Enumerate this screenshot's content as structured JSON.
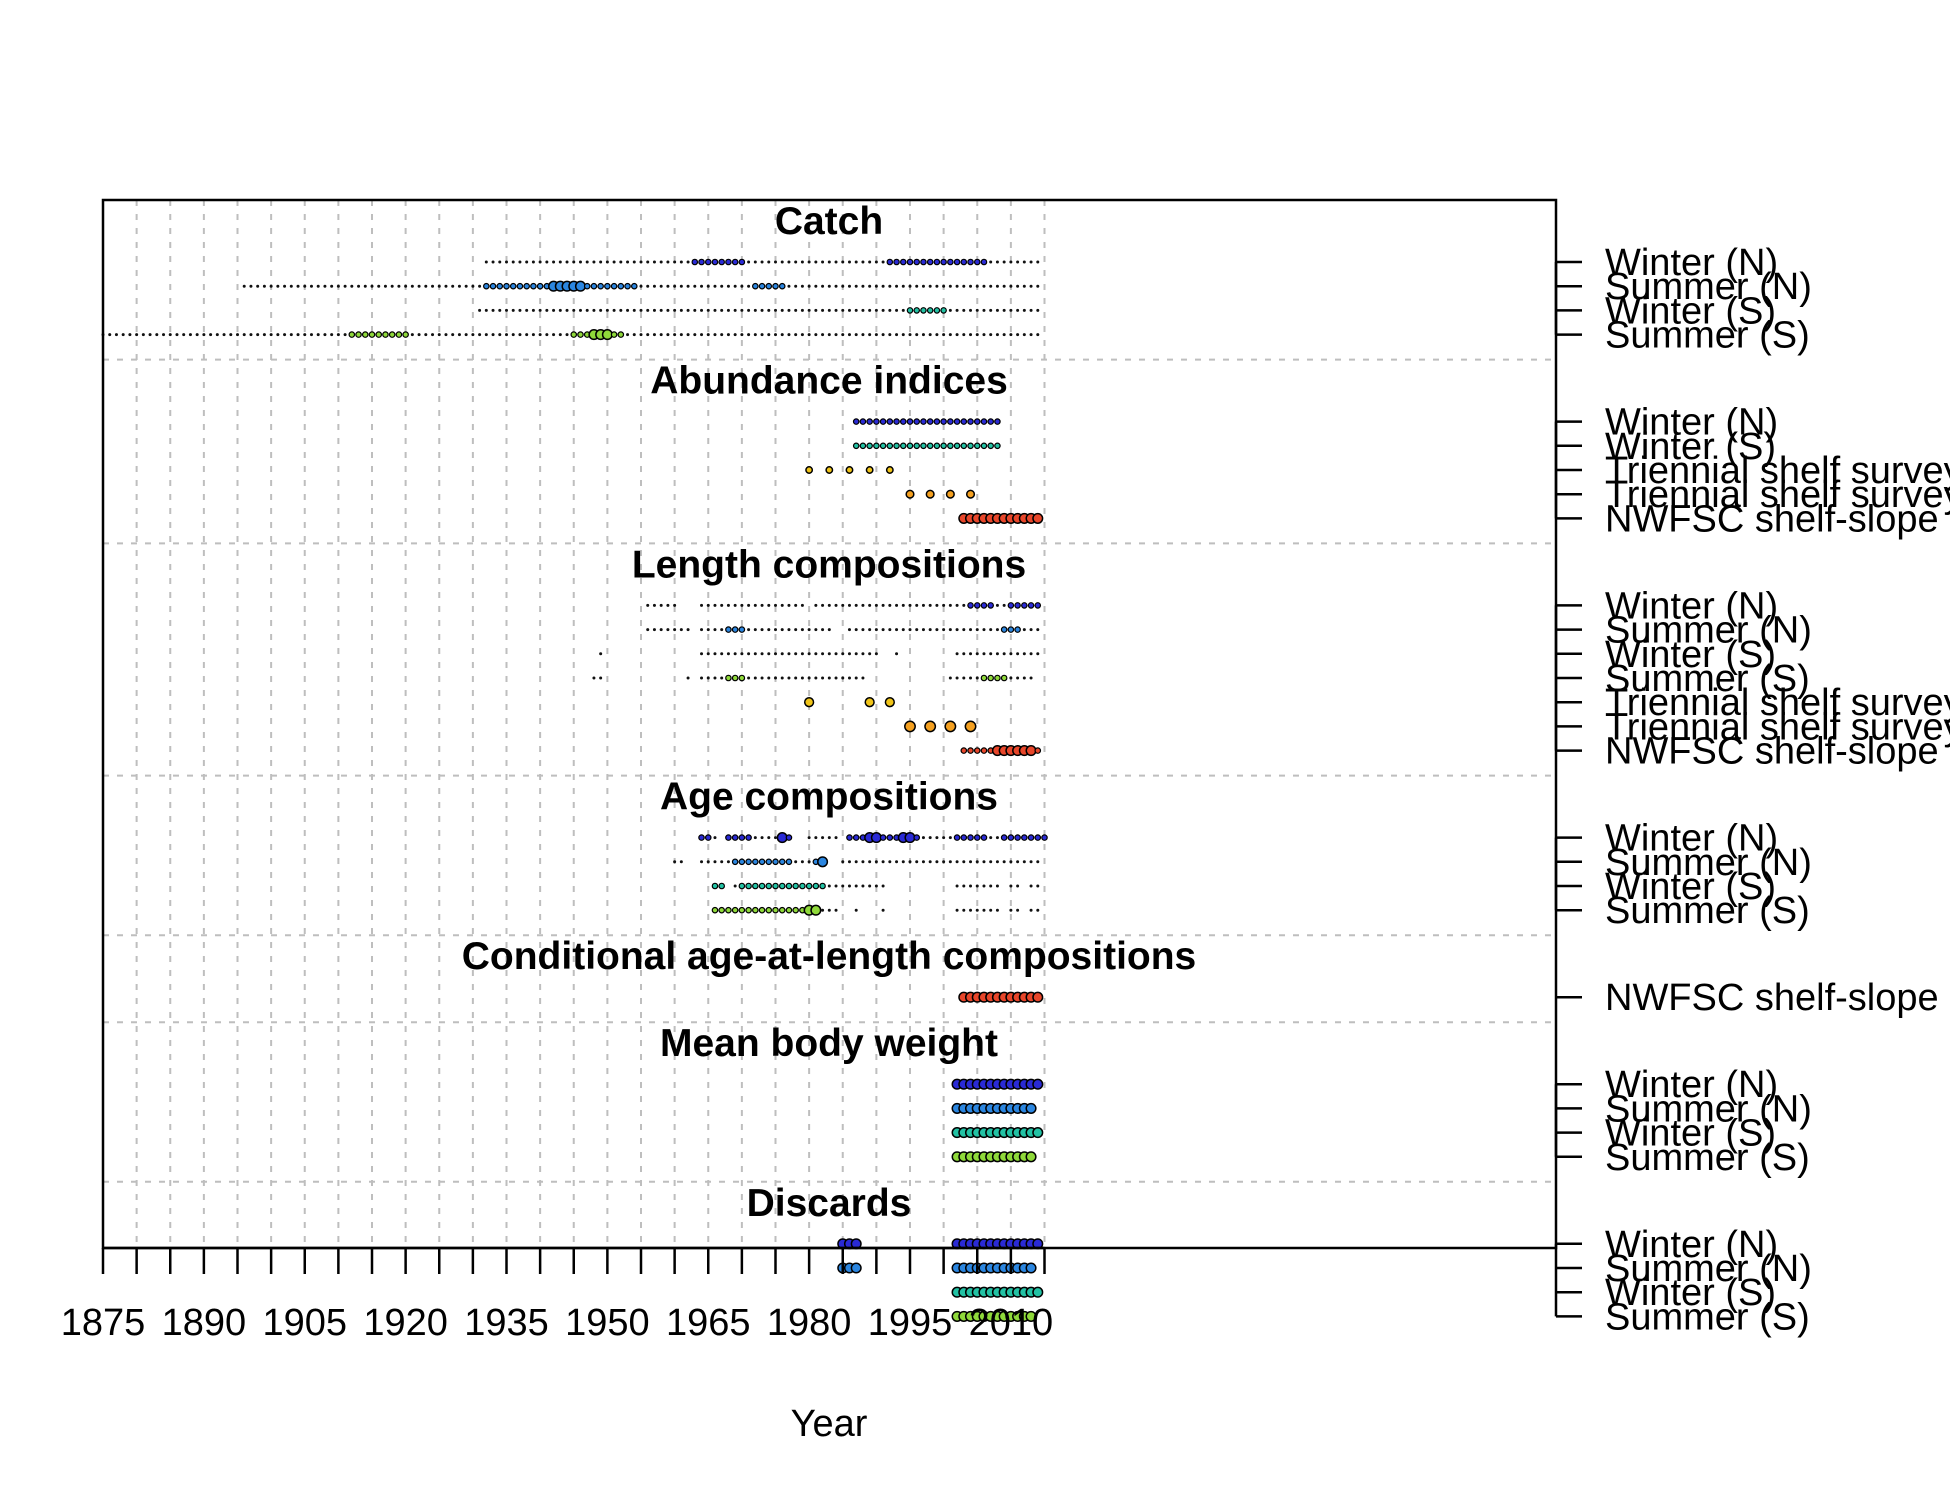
{
  "chart_data": {
    "type": "scatter",
    "title": "",
    "xlabel": "Year",
    "ylabel": "",
    "xlim": [
      1875,
      2017
    ],
    "x_ticks": [
      1875,
      1890,
      1905,
      1920,
      1935,
      1950,
      1965,
      1980,
      1995,
      2010
    ],
    "grid": true,
    "legend": "none",
    "point_colors": {
      "Winter (N)": "#2a2ad6",
      "Summer (N)": "#2b86e0",
      "Winter (S)": "#22c2a4",
      "Summer (S)": "#8fd93a",
      "Triennial shelf survey (early)": "#f0c419",
      "Triennial shelf survey (late)": "#f4a020",
      "NWFSC shelf-slope": "#e8462a"
    },
    "sections": [
      {
        "title": "Catch",
        "rows": [
          {
            "label": "Winter (N)",
            "segments": [
              [
                1932,
                2014
              ]
            ],
            "big": [
              [
                1963,
                1970
              ],
              [
                1992,
                2006
              ]
            ],
            "huge": []
          },
          {
            "label": "Summer (N)",
            "segments": [
              [
                1896,
                2014
              ]
            ],
            "big": [
              [
                1932,
                1954
              ],
              [
                1972,
                1976
              ]
            ],
            "huge": [
              [
                1942,
                1946
              ]
            ]
          },
          {
            "label": "Winter (S)",
            "segments": [
              [
                1931,
                2014
              ]
            ],
            "big": [
              [
                1995,
                2000
              ]
            ],
            "huge": []
          },
          {
            "label": "Summer (S)",
            "segments": [
              [
                1875,
                2014
              ]
            ],
            "big": [
              [
                1912,
                1920
              ],
              [
                1945,
                1952
              ]
            ],
            "huge": [
              [
                1948,
                1950
              ]
            ]
          }
        ]
      },
      {
        "title": "Abundance indices",
        "rows": [
          {
            "label": "Winter (N)",
            "segments": [
              [
                1987,
                2008
              ]
            ],
            "big": [
              [
                1987,
                2008
              ]
            ],
            "huge": []
          },
          {
            "label": "Winter (S)",
            "segments": [
              [
                1987,
                2008
              ]
            ],
            "big": [
              [
                1987,
                2008
              ]
            ],
            "huge": []
          },
          {
            "label": "Triennial shelf survey (early)",
            "points": [
              1980,
              1983,
              1986,
              1989,
              1992
            ],
            "size": 3.2
          },
          {
            "label": "Triennial shelf survey (late)",
            "points": [
              1995,
              1998,
              2001,
              2004
            ],
            "size": 3.8
          },
          {
            "label": "NWFSC shelf-slope",
            "segments": [
              [
                2003,
                2014
              ]
            ],
            "big": [
              [
                2003,
                2014
              ]
            ],
            "huge": [
              [
                2003,
                2014
              ]
            ]
          }
        ]
      },
      {
        "title": "Length compositions",
        "rows": [
          {
            "label": "Winter (N)",
            "segments": [
              [
                1956,
                1960
              ],
              [
                1964,
                1979
              ],
              [
                1981,
                2014
              ]
            ],
            "big": [
              [
                2004,
                2007
              ],
              [
                2010,
                2014
              ]
            ],
            "huge": []
          },
          {
            "label": "Summer (N)",
            "segments": [
              [
                1956,
                1959
              ],
              [
                1960,
                1962
              ],
              [
                1964,
                1983
              ],
              [
                1986,
                2014
              ]
            ],
            "big": [
              [
                1968,
                1970
              ],
              [
                2009,
                2011
              ]
            ],
            "huge": []
          },
          {
            "label": "Winter (S)",
            "segments": [
              [
                1949,
                1949
              ],
              [
                1964,
                1990
              ],
              [
                1993,
                1993
              ],
              [
                2002,
                2014
              ]
            ],
            "big": [],
            "huge": []
          },
          {
            "label": "Summer (S)",
            "segments": [
              [
                1948,
                1949
              ],
              [
                1962,
                1962
              ],
              [
                1964,
                1988
              ],
              [
                2001,
                2013
              ]
            ],
            "big": [
              [
                1968,
                1970
              ],
              [
                2006,
                2009
              ]
            ],
            "huge": []
          },
          {
            "label": "Triennial shelf survey (early)",
            "points": [
              1980,
              1989,
              1992
            ],
            "size": 4.4
          },
          {
            "label": "Triennial shelf survey (late)",
            "points": [
              1995,
              1998,
              2001,
              2004
            ],
            "size": 5.2
          },
          {
            "label": "NWFSC shelf-slope",
            "segments": [
              [
                2003,
                2014
              ]
            ],
            "big": [
              [
                2003,
                2014
              ]
            ],
            "huge": [
              [
                2008,
                2013
              ]
            ]
          }
        ]
      },
      {
        "title": "Age compositions",
        "rows": [
          {
            "label": "Winter (N)",
            "segments": [
              [
                1964,
                1966
              ],
              [
                1968,
                1977
              ],
              [
                1980,
                1984
              ],
              [
                1986,
                2015
              ]
            ],
            "big": [
              [
                1964,
                1965
              ],
              [
                1968,
                1971
              ],
              [
                1976,
                1977
              ],
              [
                1986,
                1996
              ],
              [
                2002,
                2006
              ],
              [
                2009,
                2015
              ]
            ],
            "huge": [
              [
                1976,
                1976
              ],
              [
                1989,
                1990
              ],
              [
                1994,
                1995
              ]
            ]
          },
          {
            "label": "Summer (N)",
            "segments": [
              [
                1960,
                1961
              ],
              [
                1964,
                1982
              ],
              [
                1985,
                2014
              ]
            ],
            "big": [
              [
                1969,
                1977
              ],
              [
                1981,
                1982
              ]
            ],
            "huge": [
              [
                1982,
                1982
              ]
            ]
          },
          {
            "label": "Winter (S)",
            "segments": [
              [
                1966,
                1967
              ],
              [
                1969,
                1991
              ],
              [
                2002,
                2008
              ],
              [
                2010,
                2011
              ],
              [
                2013,
                2014
              ]
            ],
            "big": [
              [
                1966,
                1967
              ],
              [
                1970,
                1982
              ]
            ],
            "huge": []
          },
          {
            "label": "Summer (S)",
            "segments": [
              [
                1966,
                1984
              ],
              [
                1987,
                1987
              ],
              [
                1991,
                1991
              ],
              [
                2002,
                2008
              ],
              [
                2010,
                2011
              ],
              [
                2013,
                2014
              ]
            ],
            "big": [
              [
                1966,
                1981
              ]
            ],
            "huge": [
              [
                1980,
                1981
              ]
            ]
          }
        ]
      },
      {
        "title": "Conditional age-at-length compositions",
        "rows": [
          {
            "label": "NWFSC shelf-slope",
            "segments": [
              [
                2003,
                2014
              ]
            ],
            "big": [
              [
                2003,
                2014
              ]
            ],
            "huge": [
              [
                2003,
                2014
              ]
            ]
          }
        ]
      },
      {
        "title": "Mean body weight",
        "rows": [
          {
            "label": "Winter (N)",
            "segments": [
              [
                2002,
                2014
              ]
            ],
            "big": [],
            "huge": [
              [
                2002,
                2014
              ]
            ]
          },
          {
            "label": "Summer (N)",
            "segments": [
              [
                2002,
                2013
              ]
            ],
            "big": [],
            "huge": [
              [
                2002,
                2013
              ]
            ]
          },
          {
            "label": "Winter (S)",
            "segments": [
              [
                2002,
                2014
              ]
            ],
            "big": [],
            "huge": [
              [
                2002,
                2014
              ]
            ]
          },
          {
            "label": "Summer (S)",
            "segments": [
              [
                2002,
                2013
              ]
            ],
            "big": [],
            "huge": [
              [
                2002,
                2013
              ]
            ]
          }
        ]
      },
      {
        "title": "Discards",
        "rows": [
          {
            "label": "Winter (N)",
            "segments": [
              [
                1985,
                1987
              ],
              [
                2002,
                2014
              ]
            ],
            "big": [],
            "huge": [
              [
                1985,
                1987
              ],
              [
                2002,
                2014
              ]
            ]
          },
          {
            "label": "Summer (N)",
            "segments": [
              [
                1985,
                1987
              ],
              [
                2002,
                2013
              ]
            ],
            "big": [],
            "huge": [
              [
                1985,
                1987
              ],
              [
                2002,
                2013
              ]
            ]
          },
          {
            "label": "Winter (S)",
            "segments": [
              [
                2002,
                2014
              ]
            ],
            "big": [],
            "huge": [
              [
                2002,
                2014
              ]
            ]
          },
          {
            "label": "Summer (S)",
            "segments": [
              [
                2002,
                2013
              ]
            ],
            "big": [],
            "huge": [
              [
                2002,
                2013
              ]
            ]
          }
        ]
      }
    ]
  }
}
